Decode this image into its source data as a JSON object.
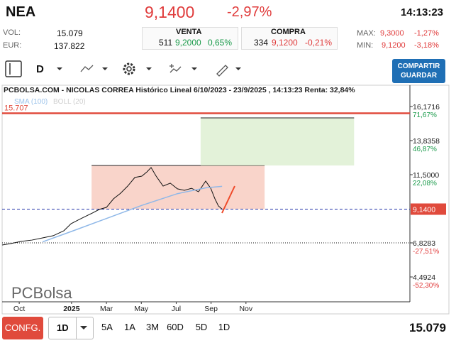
{
  "header": {
    "symbol": "NEA",
    "price": "9,1400",
    "change": "-2,97%",
    "time": "14:13:23"
  },
  "stats": {
    "vol_label": "VOL:",
    "vol": "15.079",
    "eur_label": "EUR:",
    "eur": "137.822",
    "venta": {
      "label": "VENTA",
      "qty": "511",
      "price": "9,2000",
      "pct": "0,65%"
    },
    "compra": {
      "label": "COMPRA",
      "qty": "334",
      "price": "9,1200",
      "pct": "-0,21%"
    },
    "max": {
      "label": "MAX:",
      "price": "9,3000",
      "pct": "-1,27%"
    },
    "min": {
      "label": "MIN:",
      "price": "9,1200",
      "pct": "-3,18%"
    }
  },
  "toolbar": {
    "interval": "D",
    "share": "COMPARTIR",
    "save": "GUARDAR"
  },
  "chart_data": {
    "type": "line",
    "title": "PCBOLSA.COM - NICOLAS CORREA Histórico Lineal 6/10/2023 - 23/9/2025 , 14:13:23 Renta: 32,84%",
    "indicators": [
      "SMA (100)",
      "BOLL (20)"
    ],
    "x": [
      -0.98,
      -0.49,
      0.12,
      0.73,
      1.34,
      1.95,
      2.56,
      2.97,
      3.37,
      3.78,
      4.19,
      4.59,
      5.0,
      5.41,
      5.81,
      6.22,
      6.63,
      7.03,
      7.32,
      7.56,
      7.85,
      8.25,
      8.66,
      9.07,
      9.47,
      9.88,
      10.28,
      10.69,
      10.98,
      11.22,
      11.42,
      11.63
    ],
    "series": [
      {
        "color": "#111111",
        "values": [
          6.68,
          6.78,
          6.93,
          7.02,
          7.17,
          7.32,
          7.66,
          8.14,
          8.39,
          8.63,
          8.87,
          9.12,
          9.26,
          9.85,
          10.23,
          10.72,
          11.31,
          11.4,
          11.69,
          11.99,
          11.4,
          10.72,
          10.92,
          10.53,
          10.43,
          10.57,
          10.33,
          11.06,
          10.57,
          9.85,
          9.36,
          9.14
        ]
      },
      {
        "color": "#8fb8e8",
        "x": [
          1.34,
          2.97,
          5.0,
          7.03,
          9.07,
          10.69,
          11.63
        ],
        "values": [
          6.9,
          7.6,
          8.5,
          9.4,
          10.2,
          10.6,
          10.7
        ]
      }
    ],
    "xlim": [
      -0.98,
      22.4
    ],
    "xticks": [
      {
        "value": 0,
        "label": "Oct"
      },
      {
        "value": 3,
        "label": "2025"
      },
      {
        "value": 5,
        "label": "Mar"
      },
      {
        "value": 7,
        "label": "May"
      },
      {
        "value": 9,
        "label": "Jul"
      },
      {
        "value": 11,
        "label": "Sep"
      },
      {
        "value": 13,
        "label": "Nov"
      }
    ],
    "ylim": [
      2.79,
      16.9
    ],
    "yticks": [
      {
        "value": 16.1716,
        "label": "16,1716"
      },
      {
        "value": 13.8358,
        "label": "13,8358"
      },
      {
        "value": 11.5,
        "label": "11,5000"
      },
      {
        "value": 6.8283,
        "label": "6,8283"
      },
      {
        "value": 4.4924,
        "label": "4,4924"
      }
    ],
    "y2lim": [
      -70.4,
      79.4
    ],
    "y2ticks": [
      {
        "value": 71.67,
        "label": "71,67%"
      },
      {
        "value": 46.87,
        "label": "46,87%"
      },
      {
        "value": 22.08,
        "label": "22,08%"
      },
      {
        "value": -27.51,
        "label": "-27,51%"
      },
      {
        "value": -52.3,
        "label": "-52,30%"
      }
    ],
    "current": {
      "value": 9.14,
      "label": "9,1400"
    },
    "level": {
      "value": 15.707,
      "label": "15.707"
    },
    "zones": [
      {
        "color": "#f7c9bd",
        "xlim": [
          4.15,
          14.07
        ],
        "ylim": [
          9.14,
          12.13
        ]
      },
      {
        "color": "#dcefcf",
        "xlim": [
          10.4,
          19.2
        ],
        "ylim": [
          12.13,
          15.39
        ]
      }
    ],
    "logo": "PCBolsa"
  },
  "bottom": {
    "config": "CONFG.",
    "interval": "1D",
    "ranges": [
      "5A",
      "1A",
      "3M",
      "60D",
      "5D",
      "1D"
    ],
    "volume": "15.079"
  }
}
